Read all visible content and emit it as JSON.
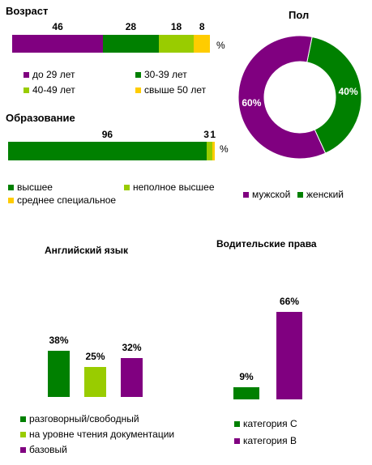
{
  "colors": {
    "purple": "#800080",
    "green": "#008000",
    "lightgreen": "#99cc00",
    "yellow": "#ffcc00"
  },
  "chart_data": [
    {
      "id": "age",
      "type": "bar",
      "title": "Возраст",
      "unit": "%",
      "series": [
        {
          "name": "до 29 лет",
          "values": [
            46
          ],
          "color": "#800080"
        },
        {
          "name": "30-39 лет",
          "values": [
            28
          ],
          "color": "#008000"
        },
        {
          "name": "40-49 лет",
          "values": [
            18
          ],
          "color": "#99cc00"
        },
        {
          "name": "свыше 50 лет",
          "values": [
            8
          ],
          "color": "#ffcc00"
        }
      ],
      "stacked": true,
      "orientation": "horizontal"
    },
    {
      "id": "education",
      "type": "bar",
      "title": "Образование",
      "unit": "%",
      "series": [
        {
          "name": "высшее",
          "values": [
            96
          ],
          "color": "#008000"
        },
        {
          "name": "неполное высшее",
          "values": [
            3
          ],
          "color": "#99cc00"
        },
        {
          "name": "среднее специальное",
          "values": [
            1
          ],
          "color": "#ffcc00"
        }
      ],
      "value_labels": [
        "96",
        "3",
        "1"
      ],
      "stacked": true,
      "orientation": "horizontal"
    },
    {
      "id": "gender",
      "type": "pie",
      "donut": true,
      "title": "Пол",
      "slices": [
        {
          "name": "мужской",
          "value": 60,
          "label": "60%",
          "color": "#800080"
        },
        {
          "name": "женский",
          "value": 40,
          "label": "40%",
          "color": "#008000"
        }
      ]
    },
    {
      "id": "english",
      "type": "bar",
      "title": "Английский язык",
      "ylim": [
        0,
        100
      ],
      "series": [
        {
          "name": "разговорный/свободный",
          "value": 38,
          "label": "38%",
          "color": "#008000"
        },
        {
          "name": "на уровне чтения документации",
          "value": 25,
          "label": "25%",
          "color": "#99cc00"
        },
        {
          "name": "базовый",
          "value": 32,
          "label": "32%",
          "color": "#800080"
        }
      ]
    },
    {
      "id": "license",
      "type": "bar",
      "title": "Водительские права",
      "ylim": [
        0,
        100
      ],
      "series": [
        {
          "name": "категория С",
          "value": 9,
          "label": "9%",
          "color": "#008000"
        },
        {
          "name": "категория В",
          "value": 66,
          "label": "66%",
          "color": "#800080"
        }
      ]
    }
  ]
}
